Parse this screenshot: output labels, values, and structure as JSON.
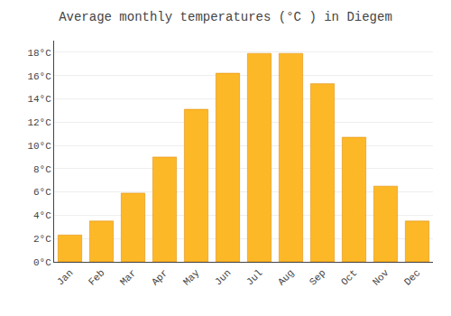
{
  "chart_data": {
    "type": "bar",
    "title": "Average monthly temperatures (°C ) in Diegem",
    "categories": [
      "Jan",
      "Feb",
      "Mar",
      "Apr",
      "May",
      "Jun",
      "Jul",
      "Aug",
      "Sep",
      "Oct",
      "Nov",
      "Dec"
    ],
    "values": [
      2.3,
      3.5,
      5.9,
      9.0,
      13.1,
      16.2,
      17.9,
      17.9,
      15.3,
      10.7,
      6.5,
      3.5
    ],
    "color": "#FDB827",
    "ylim": [
      0,
      19
    ],
    "yticks": [
      {
        "value": 0,
        "label": "0°C"
      },
      {
        "value": 2,
        "label": "2°C"
      },
      {
        "value": 4,
        "label": "4°C"
      },
      {
        "value": 6,
        "label": "6°C"
      },
      {
        "value": 8,
        "label": "8°C"
      },
      {
        "value": 10,
        "label": "10°C"
      },
      {
        "value": 12,
        "label": "12°C"
      },
      {
        "value": 14,
        "label": "14°C"
      },
      {
        "value": 16,
        "label": "16°C"
      },
      {
        "value": 18,
        "label": "18°C"
      }
    ],
    "grid": true
  }
}
